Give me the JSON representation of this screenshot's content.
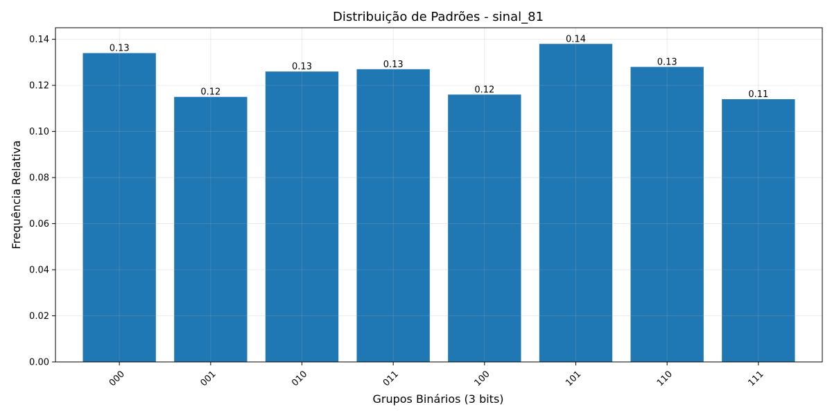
{
  "chart_data": {
    "type": "bar",
    "title": "Distribuição de Padrões - sinal_81",
    "xlabel": "Grupos Binários (3 bits)",
    "ylabel": "Frequência Relativa",
    "categories": [
      "000",
      "001",
      "010",
      "011",
      "100",
      "101",
      "110",
      "111"
    ],
    "values": [
      0.134,
      0.115,
      0.126,
      0.127,
      0.116,
      0.138,
      0.128,
      0.114
    ],
    "data_labels": [
      "0.13",
      "0.12",
      "0.13",
      "0.13",
      "0.12",
      "0.14",
      "0.13",
      "0.11"
    ],
    "ylim": [
      0,
      0.145
    ],
    "yticks": [
      0.0,
      0.02,
      0.04,
      0.06,
      0.08,
      0.1,
      0.12,
      0.14
    ],
    "ytick_labels": [
      "0.00",
      "0.02",
      "0.04",
      "0.06",
      "0.08",
      "0.10",
      "0.12",
      "0.14"
    ],
    "grid": true,
    "x_tick_rotation_deg": 45,
    "bar_color": "#1f77b4"
  }
}
